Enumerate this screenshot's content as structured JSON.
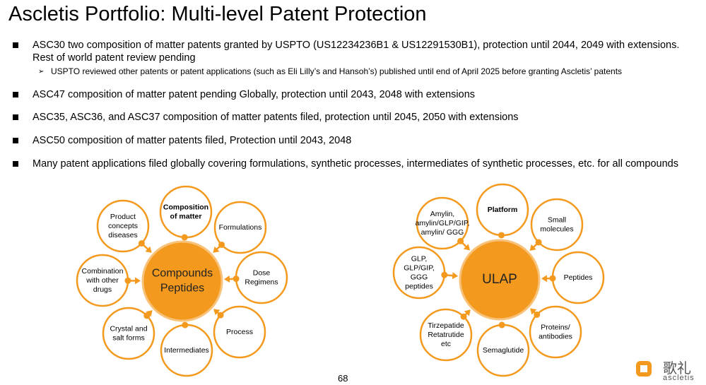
{
  "title": "Ascletis Portfolio: Multi-level Patent Protection",
  "bullets": [
    {
      "text": "ASC30 two composition of matter patents granted by USPTO (US12234236B1 & US12291530B1), protection until 2044, 2049 with extensions. Rest of world patent review pending",
      "sub": [
        "USPTO reviewed other patents or patent applications (such as Eli Lilly’s and Hansoh’s) published until end of April 2025 before granting Ascletis’ patents"
      ]
    },
    {
      "text": "ASC47 composition of matter patent pending Globally, protection until 2043, 2048 with extensions"
    },
    {
      "text": "ASC35, ASC36, and ASC37 composition of matter patents filed, protection until 2045, 2050 with extensions"
    },
    {
      "text": "ASC50 composition of matter patents filed, Protection until 2043, 2048"
    },
    {
      "text": "Many patent applications filed globally covering formulations, synthetic processes, intermediates of synthetic processes, etc. for all compounds"
    }
  ],
  "diagrams": [
    {
      "center": [
        "Compounds",
        "Peptides"
      ],
      "satellites": [
        [
          "Composition",
          "of matter"
        ],
        [
          "Formulations"
        ],
        [
          "Dose",
          "Regimens"
        ],
        [
          "Process"
        ],
        [
          "Intermediates"
        ],
        [
          "Crystal and",
          "salt forms"
        ],
        [
          "Combination",
          "with other",
          "drugs"
        ],
        [
          "Product",
          "concepts",
          "diseases"
        ]
      ]
    },
    {
      "center": [
        "ULAP"
      ],
      "satellites": [
        [
          "Platform"
        ],
        [
          "Small",
          "molecules"
        ],
        [
          "Peptides"
        ],
        [
          "Proteins/",
          "antibodies"
        ],
        [
          "Semaglutide"
        ],
        [
          "Tirzepatide",
          "Retatrutide",
          "etc"
        ],
        [
          "GLP,",
          "GLP/GIP,",
          "GGG",
          "peptides"
        ],
        [
          "Amylin,",
          "amylin/GLP/GIP,",
          "amylin/ GGG"
        ]
      ]
    }
  ],
  "page_number": "68",
  "logo": {
    "chinese": "歌礼",
    "name": "ascletis"
  }
}
